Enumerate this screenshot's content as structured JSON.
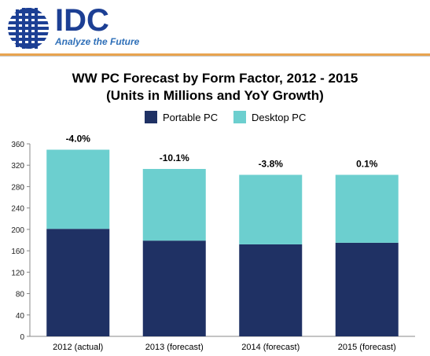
{
  "header": {
    "brand": "IDC",
    "tagline": "Analyze the Future"
  },
  "colors": {
    "portable": "#1f3164",
    "desktop": "#6ccfcf",
    "brand": "#1c3f94",
    "rule": "#e8a450"
  },
  "chart_data": {
    "type": "bar",
    "stacked": true,
    "title": "WW PC Forecast by Form Factor, 2012 - 2015",
    "subtitle": "(Units in Millions and YoY Growth)",
    "categories": [
      "2012 (actual)",
      "2013 (forecast)",
      "2014 (forecast)",
      "2015 (forecast)"
    ],
    "series": [
      {
        "name": "Portable PC",
        "values": [
          201,
          179,
          172,
          175
        ]
      },
      {
        "name": "Desktop PC",
        "values": [
          148,
          134,
          130,
          127
        ]
      }
    ],
    "growth_labels": [
      "-4.0%",
      "-10.1%",
      "-3.8%",
      "0.1%"
    ],
    "ylim": [
      0,
      360
    ],
    "yticks": [
      0,
      40,
      80,
      120,
      160,
      200,
      240,
      280,
      320,
      360
    ],
    "grid": false,
    "legend_position": "top-center"
  }
}
